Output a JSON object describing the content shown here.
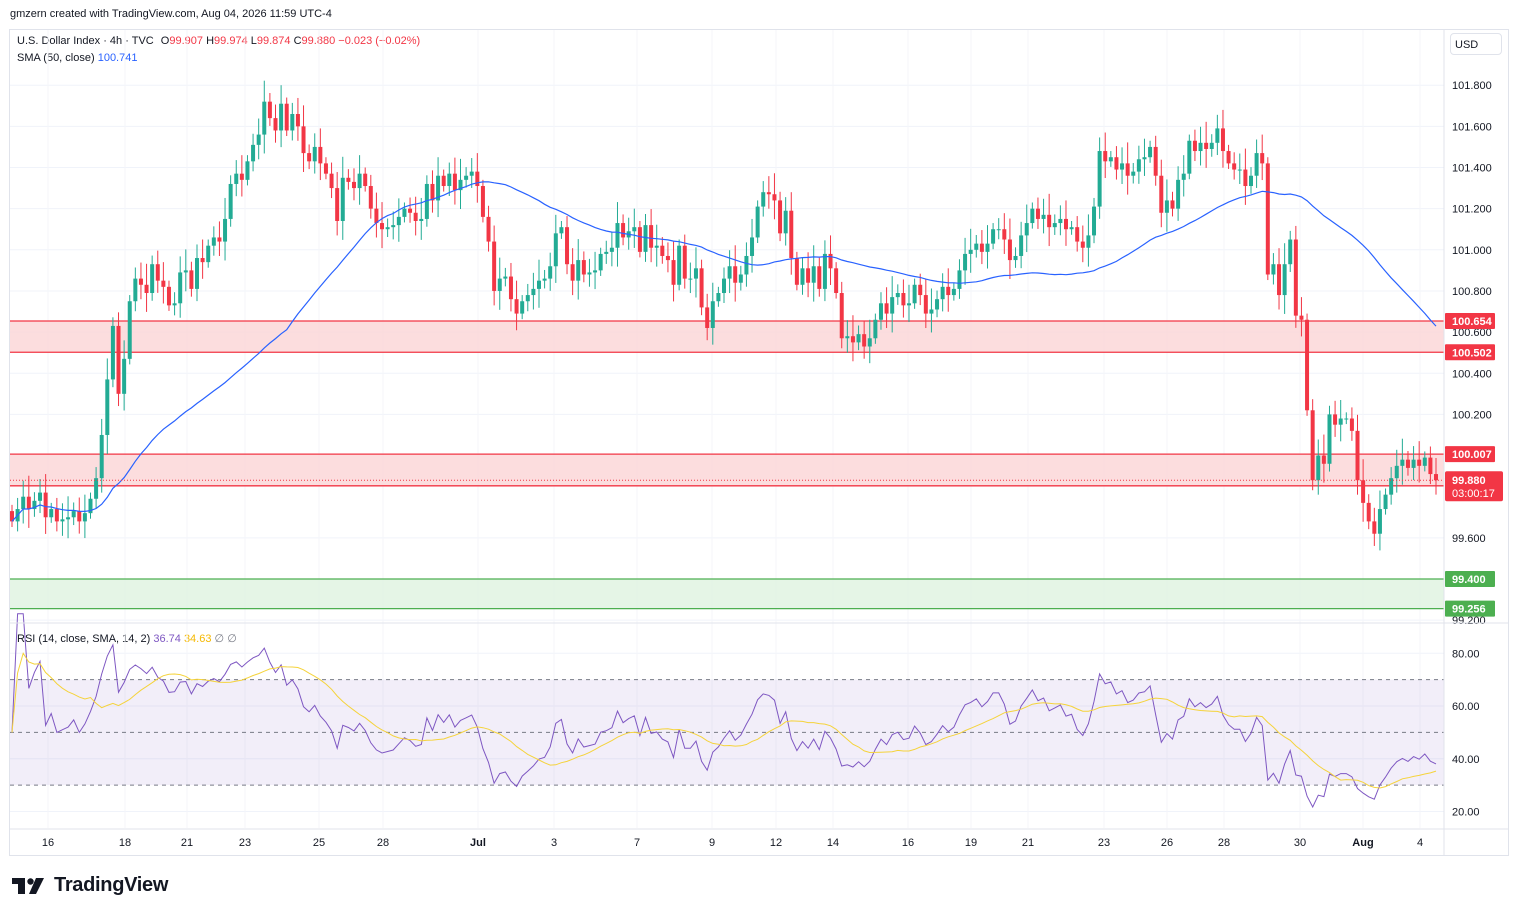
{
  "header": {
    "text": "gmzern created with TradingView.com, Aug 04, 2026 11:59 UTC-4"
  },
  "legend": {
    "symbol": "U.S. Dollar Index · 4h · TVC",
    "o_label": "O",
    "o_value": "99.907",
    "h_label": "H",
    "h_value": "99.974",
    "l_label": "L",
    "l_value": "99.874",
    "c_label": "C",
    "c_value": "99.880",
    "change": "−0.023 (−0.02%)",
    "sma_label": "SMA (50, close)",
    "sma_value": "100.741"
  },
  "currency": "USD",
  "rsi_legend": {
    "label": "RSI (14, close, SMA, 14, 2)",
    "rsi_value": "36.74",
    "sma_value": "34.63",
    "extra1": "∅",
    "extra2": "∅"
  },
  "price_axis": {
    "ticks": [
      "101.800",
      "101.600",
      "101.400",
      "101.200",
      "101.000",
      "100.800",
      "100.600",
      "100.400",
      "100.200",
      "99.600",
      "99.200"
    ],
    "ticks_values": [
      101.8,
      101.6,
      101.4,
      101.2,
      101.0,
      100.8,
      100.6,
      100.4,
      100.2,
      99.6,
      99.2
    ]
  },
  "rsi_axis": {
    "ticks": [
      "80.00",
      "60.00",
      "40.00",
      "20.00"
    ],
    "ticks_values": [
      80,
      60,
      40,
      20
    ]
  },
  "time_axis": {
    "labels": [
      "16",
      "18",
      "21",
      "23",
      "25",
      "28",
      "Jul",
      "3",
      "7",
      "9",
      "12",
      "14",
      "16",
      "19",
      "21",
      "23",
      "26",
      "28",
      "30",
      "Aug",
      "4"
    ],
    "bold": [
      false,
      false,
      false,
      false,
      false,
      false,
      true,
      false,
      false,
      false,
      false,
      false,
      false,
      false,
      false,
      false,
      false,
      false,
      false,
      true,
      false
    ]
  },
  "zones": [
    {
      "top": 100.654,
      "bottom": 100.502,
      "color": "#f23645",
      "fill": "#fbd4d6",
      "top_label": "100.654",
      "bottom_label": "100.502"
    },
    {
      "top": 100.007,
      "bottom": 99.853,
      "color": "#f23645",
      "fill": "#fbd4d6",
      "top_label": "100.007",
      "bottom_label": "99.853"
    },
    {
      "top": 99.4,
      "bottom": 99.256,
      "color": "#4caf50",
      "fill": "#dff2e0",
      "top_label": "99.400",
      "bottom_label": "99.256"
    }
  ],
  "current_price": {
    "value": "99.880",
    "countdown": "03:00:17",
    "level": 99.88
  },
  "logo_text": "TradingView",
  "colors": {
    "up": "#22ab94",
    "down": "#f23645",
    "sma": "#2962ff",
    "rsi": "#7e57c2",
    "rsi_sma": "#f5d33b",
    "rsi_band": "#7e57c2"
  },
  "chart_data": {
    "type": "candlestick",
    "symbol": "U.S. Dollar Index",
    "interval": "4h",
    "y_range": [
      99.2,
      101.9
    ],
    "closes": [
      99.68,
      99.74,
      99.8,
      99.74,
      99.78,
      99.82,
      99.7,
      99.74,
      99.68,
      99.69,
      99.7,
      99.73,
      99.68,
      99.72,
      99.79,
      99.89,
      100.1,
      100.37,
      100.63,
      100.3,
      100.47,
      100.75,
      100.86,
      100.83,
      100.79,
      100.93,
      100.85,
      100.82,
      100.73,
      100.74,
      100.89,
      100.9,
      100.81,
      100.96,
      100.94,
      101.02,
      101.06,
      101.04,
      101.15,
      101.32,
      101.37,
      101.34,
      101.43,
      101.51,
      101.56,
      101.72,
      101.64,
      101.58,
      101.71,
      101.58,
      101.66,
      101.6,
      101.47,
      101.43,
      101.5,
      101.42,
      101.37,
      101.3,
      101.14,
      101.35,
      101.33,
      101.3,
      101.37,
      101.31,
      101.2,
      101.13,
      101.1,
      101.11,
      101.12,
      101.16,
      101.2,
      101.18,
      101.14,
      101.15,
      101.32,
      101.24,
      101.36,
      101.31,
      101.37,
      101.29,
      101.34,
      101.36,
      101.38,
      101.31,
      101.16,
      101.04,
      100.8,
      100.86,
      100.87,
      100.76,
      100.69,
      100.75,
      100.78,
      100.81,
      100.85,
      100.86,
      100.92,
      101.08,
      101.11,
      100.93,
      100.85,
      100.95,
      100.88,
      100.89,
      100.9,
      100.98,
      100.99,
      101.01,
      101.13,
      101.06,
      101.09,
      101.11,
      100.99,
      101.12,
      101.01,
      101.02,
      100.97,
      100.95,
      100.83,
      101.02,
      100.86,
      100.86,
      100.91,
      100.72,
      100.62,
      100.75,
      100.79,
      100.86,
      100.92,
      100.84,
      100.88,
      100.97,
      101.06,
      101.21,
      101.28,
      101.27,
      101.24,
      101.08,
      101.19,
      100.96,
      100.83,
      100.91,
      100.84,
      100.92,
      100.81,
      100.98,
      100.91,
      100.79,
      100.57,
      100.58,
      100.55,
      100.59,
      100.53,
      100.57,
      100.66,
      100.74,
      100.69,
      100.77,
      100.79,
      100.73,
      100.74,
      100.83,
      100.78,
      100.69,
      100.71,
      100.76,
      100.82,
      100.78,
      100.81,
      100.9,
      100.98,
      101.0,
      101.03,
      100.99,
      101.03,
      101.1,
      101.1,
      101.05,
      100.95,
      100.97,
      101.07,
      101.13,
      101.2,
      101.15,
      101.17,
      101.11,
      101.13,
      101.15,
      101.1,
      101.11,
      101.04,
      101.01,
      101.07,
      101.21,
      101.48,
      101.43,
      101.45,
      101.39,
      101.42,
      101.36,
      101.38,
      101.44,
      101.45,
      101.5,
      101.36,
      101.18,
      101.24,
      101.2,
      101.34,
      101.37,
      101.53,
      101.48,
      101.52,
      101.49,
      101.52,
      101.59,
      101.48,
      101.42,
      101.39,
      101.39,
      101.31,
      101.36,
      101.47,
      101.42,
      100.88,
      100.93,
      100.78,
      100.93,
      101.05,
      100.68,
      100.66,
      100.22,
      99.88,
      100.0,
      99.96,
      100.2,
      100.15,
      100.18,
      100.18,
      100.12,
      99.88,
      99.77,
      99.68,
      99.62,
      99.74,
      99.81,
      99.89,
      99.95,
      99.98,
      99.94,
      99.98,
      99.95,
      99.99,
      99.91,
      99.88
    ],
    "sma50_end": 100.741,
    "rsi_end": 36.74,
    "rsi_sma_end": 34.63,
    "rsi_levels": [
      70,
      50,
      30
    ]
  }
}
